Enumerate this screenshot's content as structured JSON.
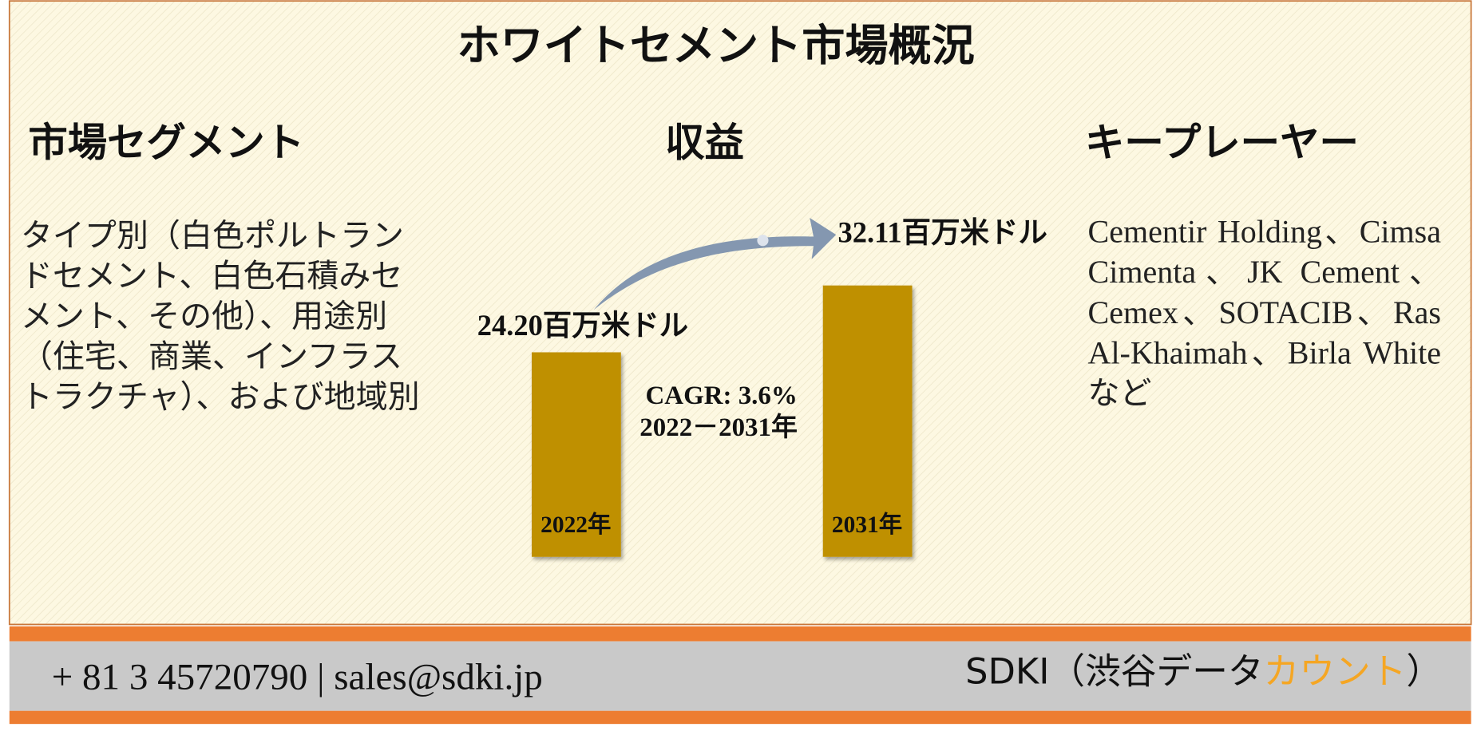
{
  "title": "ホワイトセメント市場概況",
  "segments": {
    "heading": "市場セグメント",
    "text": "タイプ別（白色ポルトランドセメント、白色石積みセメント、その他）、用途別（住宅、商業、インフラストラクチャ）、および地域別"
  },
  "revenue": {
    "heading": "収益",
    "bars": [
      {
        "year": "2022年",
        "value": 24.2,
        "value_label": "24.20百万米ドル"
      },
      {
        "year": "2031年",
        "value": 32.11,
        "value_label": "32.11百万米ドル"
      }
    ],
    "cagr": "CAGR: 3.6%",
    "period": "2022－2031年"
  },
  "key_players": {
    "heading": "キープレーヤー",
    "text": "Cementir Holding、Cimsa Cimenta、JK Cement、Cemex、SOTACIB、Ras Al-Khaimah、Birla White など"
  },
  "footer": {
    "contact": "+ 81 3 45720790 | sales@sdki.jp",
    "brand": "SDKI（渋谷データ",
    "brand_highlight": "カウント",
    "brand_end": "）"
  }
}
